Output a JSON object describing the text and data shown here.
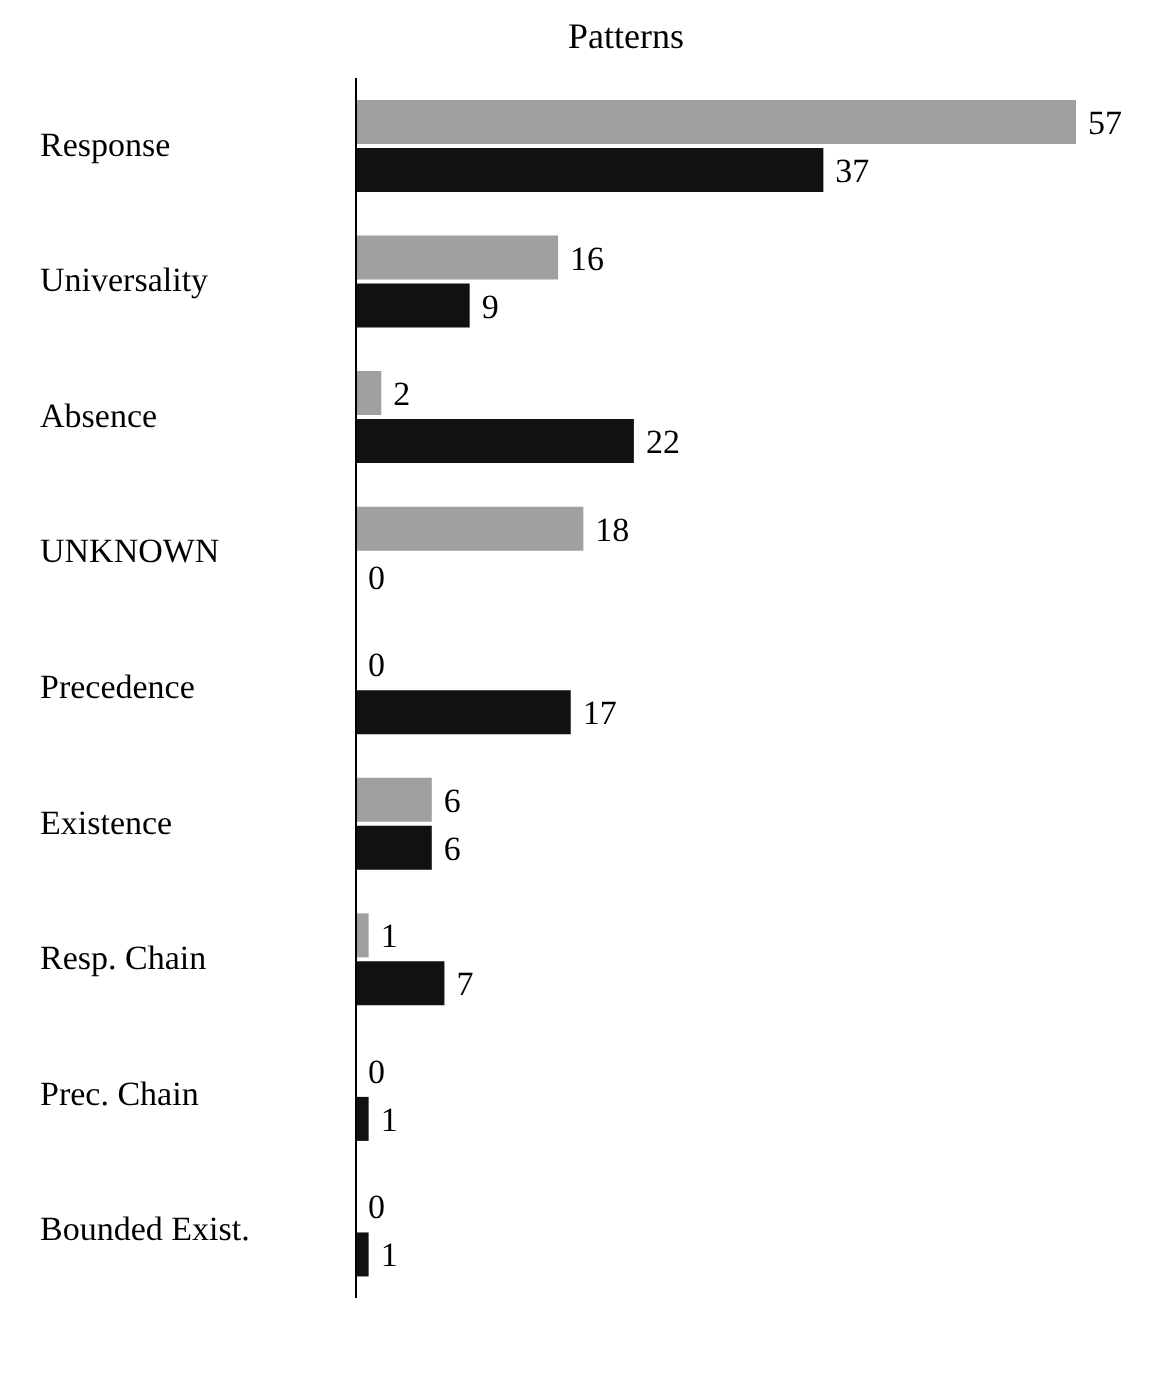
{
  "chart_data": {
    "type": "bar",
    "orientation": "horizontal",
    "title": "Patterns",
    "categories": [
      "Response",
      "Universality",
      "Absence",
      "UNKNOWN",
      "Precedence",
      "Existence",
      "Resp. Chain",
      "Prec. Chain",
      "Bounded Exist."
    ],
    "series": [
      {
        "color": "#a0a0a0",
        "values": [
          57,
          16,
          2,
          18,
          0,
          6,
          1,
          0,
          0
        ]
      },
      {
        "color": "#111111",
        "values": [
          37,
          9,
          22,
          0,
          17,
          6,
          7,
          1,
          1
        ]
      }
    ],
    "data_labels": true,
    "tick_labels": "y"
  }
}
